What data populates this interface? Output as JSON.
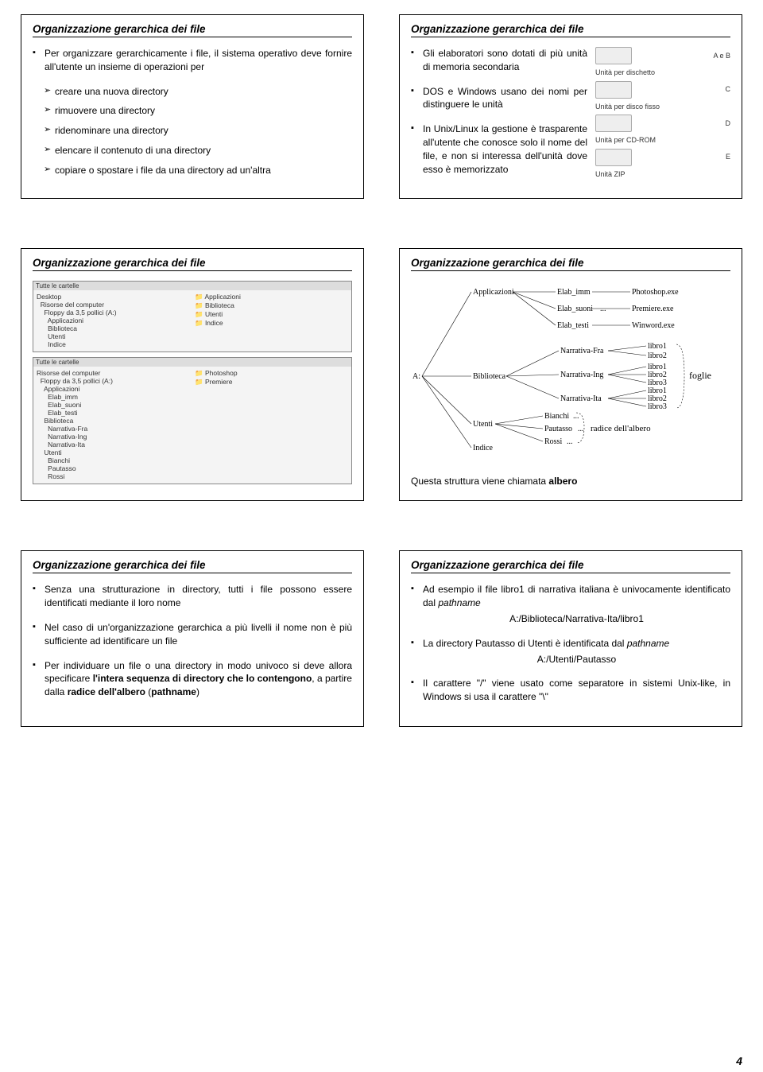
{
  "page_number": "4",
  "slides": [
    {
      "title": "Organizzazione gerarchica dei file",
      "block1": "Per organizzare gerarchicamente i file, il sistema operativo deve fornire all'utente un insieme di operazioni per",
      "ops": [
        "creare una nuova directory",
        "rimuovere una directory",
        "ridenominare una directory",
        "elencare il contenuto di una directory",
        "copiare o spostare i file da una directory ad un'altra"
      ]
    },
    {
      "title": "Organizzazione gerarchica dei file",
      "bullets": [
        "Gli elaboratori sono dotati di più unità di memoria secondaria",
        "DOS e Windows usano dei nomi per distinguere le unità",
        "In Unix/Linux la gestione è trasparente all'utente che conosce solo il nome del file, e non si interessa dell'unità dove esso è memorizzato"
      ],
      "drives": [
        {
          "label": "Unità per dischetto",
          "letter": "A e B"
        },
        {
          "label": "Unità per disco fisso",
          "letter": "C"
        },
        {
          "label": "",
          "letter": "D"
        },
        {
          "label": "Unità per CD-ROM",
          "letter": ""
        },
        {
          "label": "",
          "letter": "E"
        },
        {
          "label": "Unità ZIP",
          "letter": ""
        }
      ]
    },
    {
      "title": "Organizzazione gerarchica dei file",
      "shot1": {
        "bartxt": "Tutte le cartelle",
        "left": [
          "Desktop",
          "  Risorse del computer",
          "    Floppy da 3,5 pollici (A:)",
          "      Applicazioni",
          "      Biblioteca",
          "      Utenti",
          "      Indice"
        ],
        "right": [
          "Applicazioni",
          "Biblioteca",
          "Utenti",
          "Indice"
        ]
      },
      "shot2": {
        "bartxt": "Tutte le cartelle",
        "left": [
          "Risorse del computer",
          "  Floppy da 3,5 pollici (A:)",
          "    Applicazioni",
          "      Elab_imm",
          "      Elab_suoni",
          "      Elab_testi",
          "    Biblioteca",
          "      Narrativa-Fra",
          "      Narrativa-Ing",
          "      Narrativa-Ita",
          "    Utenti",
          "      Bianchi",
          "      Pautasso",
          "      Rossi"
        ],
        "right": [
          "Photoshop",
          "Premiere"
        ]
      }
    },
    {
      "title": "Organizzazione gerarchica dei file",
      "tree": {
        "root": "A:",
        "dirs": [
          "Applicazioni",
          "Biblioteca",
          "Utenti",
          "Indice"
        ],
        "app_children": [
          {
            "n": "Elab_imm",
            "f": "Photoshop.exe"
          },
          {
            "n": "Elab_suoni",
            "f": "Premiere.exe",
            "dots": "..."
          },
          {
            "n": "Elab_testi",
            "f": "Winword.exe"
          }
        ],
        "bib_children": [
          "Narrativa-Fra",
          "Narrativa-Ing",
          "Narrativa-Ita"
        ],
        "leaf_sets": [
          [
            "libro1",
            "libro2"
          ],
          [
            "libro1",
            "libro2",
            "libro3"
          ],
          [
            "libro1",
            "libro2",
            "libro3"
          ]
        ],
        "utenti_children": [
          "Bianchi",
          "Pautasso",
          "Rossi"
        ],
        "brace_foglie": "foglie",
        "brace_radice": "radice dell'albero"
      },
      "caption_pre": "Questa struttura viene chiamata ",
      "caption_bold": "albero"
    },
    {
      "title": "Organizzazione gerarchica dei file",
      "bullets": [
        "Senza una strutturazione in directory, tutti i file possono essere identificati mediante il loro nome",
        "Nel caso di un'organizzazione gerarchica a più livelli il nome non è più sufficiente ad identificare un file"
      ],
      "bullet3_pre": "Per individuare un file o una directory in modo univoco si deve allora specificare ",
      "bullet3_b1": "l'intera sequenza di directory che lo contengono",
      "bullet3_mid": ", a partire dalla ",
      "bullet3_b2": "radice dell'albero",
      "bullet3_post": " (",
      "bullet3_b3": "pathname",
      "bullet3_end": ")"
    },
    {
      "title": "Organizzazione gerarchica dei file",
      "b1_pre": "Ad esempio il file libro1 di narrativa italiana è univocamente identificato dal ",
      "b1_it": "pathname",
      "b1_path": "A:/Biblioteca/Narrativa-Ita/libro1",
      "b2_pre": "La directory Pautasso di Utenti è identificata dal ",
      "b2_it": "pathname",
      "b2_path": "A:/Utenti/Pautasso",
      "b3": "Il carattere \"/\" viene usato come separatore in sistemi Unix-like, in Windows si usa il carattere \"\\\""
    }
  ]
}
